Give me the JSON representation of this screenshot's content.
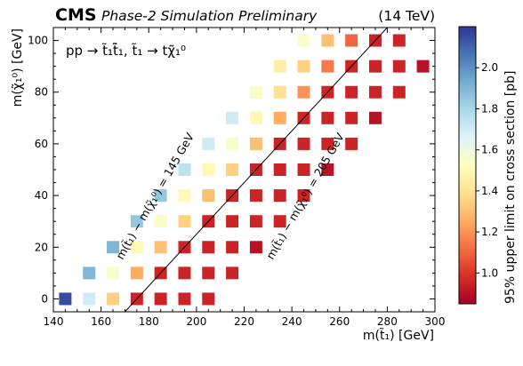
{
  "header": {
    "experiment": "CMS",
    "status": "Phase-2 Simulation Preliminary",
    "energy": "(14 TeV)"
  },
  "chart_data": {
    "type": "heatmap",
    "title": "",
    "xlabel": "m(t̃₁) [GeV]",
    "ylabel": "m(χ̃₁⁰) [GeV]",
    "process_label": "pp → t̃₁t̃̄₁, t̃₁ → tχ̃₁⁰",
    "xlim": [
      140,
      300
    ],
    "ylim": [
      -5,
      105
    ],
    "x_ticks": [
      140,
      160,
      180,
      200,
      220,
      240,
      260,
      280,
      300
    ],
    "y_ticks": [
      0,
      20,
      40,
      60,
      80,
      100
    ],
    "colorbar": {
      "label": "95% upper limit on cross section [pb]",
      "range": [
        0.85,
        2.2
      ],
      "ticks": [
        1.0,
        1.2,
        1.4,
        1.6,
        1.8,
        2.0
      ],
      "tick_labels": [
        "1.0",
        "1.2",
        "1.4",
        "1.6",
        "1.8",
        "2.0"
      ],
      "colormap": "RdYlBu_r"
    },
    "grid": false,
    "diagonal_line": {
      "from": [
        170,
        -5
      ],
      "to": [
        280,
        105
      ]
    },
    "diagonal_labels": [
      {
        "text": "m(t̃₁) − m(χ̃₁⁰) = 145 GeV",
        "anchor": [
          184,
          39
        ]
      },
      {
        "text": "m(t̃₁) − m(χ̃₁⁰) = 205 GeV",
        "anchor": [
          247,
          39
        ]
      }
    ],
    "points": [
      {
        "x": 145,
        "y": 0,
        "z": 2.15
      },
      {
        "x": 155,
        "y": 0,
        "z": 1.7
      },
      {
        "x": 165,
        "y": 0,
        "z": 1.35
      },
      {
        "x": 175,
        "y": 0,
        "z": 0.95
      },
      {
        "x": 185,
        "y": 0,
        "z": 0.95
      },
      {
        "x": 195,
        "y": 0,
        "z": 0.95
      },
      {
        "x": 205,
        "y": 0,
        "z": 0.95
      },
      {
        "x": 155,
        "y": 10,
        "z": 1.9
      },
      {
        "x": 165,
        "y": 10,
        "z": 1.55
      },
      {
        "x": 175,
        "y": 10,
        "z": 1.25
      },
      {
        "x": 185,
        "y": 10,
        "z": 0.95
      },
      {
        "x": 195,
        "y": 10,
        "z": 0.95
      },
      {
        "x": 205,
        "y": 10,
        "z": 0.95
      },
      {
        "x": 215,
        "y": 10,
        "z": 0.95
      },
      {
        "x": 165,
        "y": 20,
        "z": 1.9
      },
      {
        "x": 175,
        "y": 20,
        "z": 1.5
      },
      {
        "x": 185,
        "y": 20,
        "z": 1.3
      },
      {
        "x": 195,
        "y": 20,
        "z": 0.95
      },
      {
        "x": 205,
        "y": 20,
        "z": 0.95
      },
      {
        "x": 215,
        "y": 20,
        "z": 0.95
      },
      {
        "x": 225,
        "y": 20,
        "z": 0.9
      },
      {
        "x": 175,
        "y": 30,
        "z": 1.85
      },
      {
        "x": 185,
        "y": 30,
        "z": 1.55
      },
      {
        "x": 195,
        "y": 30,
        "z": 1.35
      },
      {
        "x": 205,
        "y": 30,
        "z": 0.95
      },
      {
        "x": 215,
        "y": 30,
        "z": 0.95
      },
      {
        "x": 225,
        "y": 30,
        "z": 0.95
      },
      {
        "x": 235,
        "y": 30,
        "z": 0.95
      },
      {
        "x": 185,
        "y": 40,
        "z": 1.85
      },
      {
        "x": 195,
        "y": 40,
        "z": 1.5
      },
      {
        "x": 205,
        "y": 40,
        "z": 1.3
      },
      {
        "x": 215,
        "y": 40,
        "z": 0.95
      },
      {
        "x": 225,
        "y": 40,
        "z": 0.95
      },
      {
        "x": 235,
        "y": 40,
        "z": 0.95
      },
      {
        "x": 245,
        "y": 40,
        "z": 0.95
      },
      {
        "x": 195,
        "y": 50,
        "z": 1.75
      },
      {
        "x": 205,
        "y": 50,
        "z": 1.5
      },
      {
        "x": 215,
        "y": 50,
        "z": 1.35
      },
      {
        "x": 225,
        "y": 50,
        "z": 0.95
      },
      {
        "x": 235,
        "y": 50,
        "z": 0.95
      },
      {
        "x": 245,
        "y": 50,
        "z": 0.95
      },
      {
        "x": 255,
        "y": 50,
        "z": 0.9
      },
      {
        "x": 205,
        "y": 60,
        "z": 1.7
      },
      {
        "x": 215,
        "y": 60,
        "z": 1.55
      },
      {
        "x": 225,
        "y": 60,
        "z": 1.3
      },
      {
        "x": 235,
        "y": 60,
        "z": 0.95
      },
      {
        "x": 245,
        "y": 60,
        "z": 0.95
      },
      {
        "x": 255,
        "y": 60,
        "z": 0.95
      },
      {
        "x": 265,
        "y": 60,
        "z": 0.95
      },
      {
        "x": 215,
        "y": 70,
        "z": 1.7
      },
      {
        "x": 225,
        "y": 70,
        "z": 1.5
      },
      {
        "x": 235,
        "y": 70,
        "z": 1.25
      },
      {
        "x": 245,
        "y": 70,
        "z": 0.95
      },
      {
        "x": 255,
        "y": 70,
        "z": 0.95
      },
      {
        "x": 265,
        "y": 70,
        "z": 0.95
      },
      {
        "x": 275,
        "y": 70,
        "z": 0.9
      },
      {
        "x": 225,
        "y": 80,
        "z": 1.55
      },
      {
        "x": 235,
        "y": 80,
        "z": 1.4
      },
      {
        "x": 245,
        "y": 80,
        "z": 1.2
      },
      {
        "x": 255,
        "y": 80,
        "z": 0.95
      },
      {
        "x": 265,
        "y": 80,
        "z": 0.95
      },
      {
        "x": 275,
        "y": 80,
        "z": 0.95
      },
      {
        "x": 285,
        "y": 80,
        "z": 0.95
      },
      {
        "x": 235,
        "y": 90,
        "z": 1.45
      },
      {
        "x": 245,
        "y": 90,
        "z": 1.35
      },
      {
        "x": 255,
        "y": 90,
        "z": 1.15
      },
      {
        "x": 265,
        "y": 90,
        "z": 0.95
      },
      {
        "x": 275,
        "y": 90,
        "z": 0.95
      },
      {
        "x": 285,
        "y": 90,
        "z": 0.95
      },
      {
        "x": 295,
        "y": 90,
        "z": 0.9
      },
      {
        "x": 245,
        "y": 100,
        "z": 1.55
      },
      {
        "x": 255,
        "y": 100,
        "z": 1.3
      },
      {
        "x": 265,
        "y": 100,
        "z": 1.1
      },
      {
        "x": 275,
        "y": 100,
        "z": 0.95
      },
      {
        "x": 285,
        "y": 100,
        "z": 0.95
      }
    ]
  }
}
